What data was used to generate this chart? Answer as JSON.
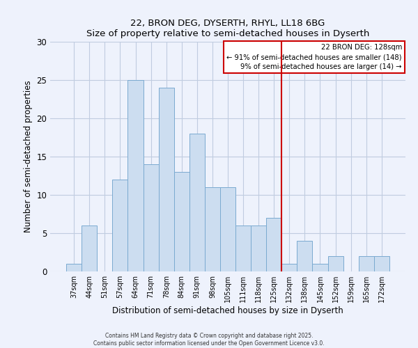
{
  "title": "22, BRON DEG, DYSERTH, RHYL, LL18 6BG",
  "subtitle": "Size of property relative to semi-detached houses in Dyserth",
  "xlabel": "Distribution of semi-detached houses by size in Dyserth",
  "ylabel": "Number of semi-detached properties",
  "bar_color": "#ccddf0",
  "bar_edge_color": "#7aaad0",
  "categories": [
    "37sqm",
    "44sqm",
    "51sqm",
    "57sqm",
    "64sqm",
    "71sqm",
    "78sqm",
    "84sqm",
    "91sqm",
    "98sqm",
    "105sqm",
    "111sqm",
    "118sqm",
    "125sqm",
    "132sqm",
    "138sqm",
    "145sqm",
    "152sqm",
    "159sqm",
    "165sqm",
    "172sqm"
  ],
  "values": [
    1,
    6,
    0,
    12,
    25,
    14,
    24,
    13,
    18,
    11,
    11,
    6,
    6,
    7,
    1,
    4,
    1,
    2,
    0,
    2,
    2
  ],
  "vline_x": 13.5,
  "vline_color": "#cc0000",
  "annotation_title": "22 BRON DEG: 128sqm",
  "annotation_line1": "← 91% of semi-detached houses are smaller (148)",
  "annotation_line2": "9% of semi-detached houses are larger (14) →",
  "annotation_box_color": "#ffffff",
  "annotation_box_edge": "#cc0000",
  "ylim": [
    0,
    30
  ],
  "yticks": [
    0,
    5,
    10,
    15,
    20,
    25,
    30
  ],
  "grid_color": "#c0cce0",
  "bg_color": "#eef2fc",
  "footer1": "Contains HM Land Registry data © Crown copyright and database right 2025.",
  "footer2": "Contains public sector information licensed under the Open Government Licence v3.0."
}
